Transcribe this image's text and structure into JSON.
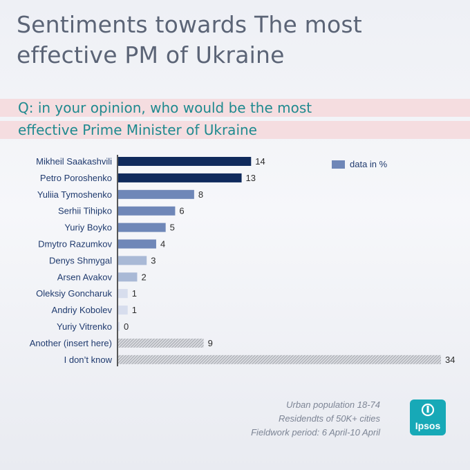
{
  "title": "Sentiments towards The most effective PM of Ukraine",
  "title_line1": "Sentiments towards The most",
  "title_line2": "effective PM of Ukraine",
  "question_line1": "Q: in your opinion, who would be the most",
  "question_line2": "effective Prime Minister of Ukraine",
  "legend": "data in %",
  "footnote": [
    "Urban population 18-74",
    "Residendts of 50K+ cities",
    "Fieldwork period: 6 April-10 April"
  ],
  "logo_text": "Ipsos",
  "colors": {
    "dark": "#0f2a5c",
    "mid": "#6f87b8",
    "light": "#a9b9d6",
    "pale": "#d7dded",
    "hatch": "#a0a3aa",
    "accent": "#1f8a8f"
  },
  "chart_data": {
    "type": "bar",
    "orientation": "horizontal",
    "unit": "%",
    "categories": [
      "Mikheil Saakashvili",
      "Petro Poroshenko",
      "Yuliia Tymoshenko",
      "Serhii Tihipko",
      "Yuriy Boyko",
      "Dmytro Razumkov",
      "Denys Shmygal",
      "Arsen Avakov",
      "Oleksiy Goncharuk",
      "Andriy Kobolev",
      "Yuriy Vitrenko",
      "Another (insert here)",
      "I don’t know"
    ],
    "values": [
      14,
      13,
      8,
      6,
      5,
      4,
      3,
      2,
      1,
      1,
      0,
      9,
      34
    ],
    "styles": [
      "dark",
      "dark",
      "mid",
      "mid",
      "mid",
      "mid",
      "light",
      "light",
      "pale",
      "pale",
      "pale",
      "hatch",
      "hatch"
    ],
    "xlim": [
      0,
      34
    ],
    "legend_position": "top-right",
    "grid": false
  }
}
